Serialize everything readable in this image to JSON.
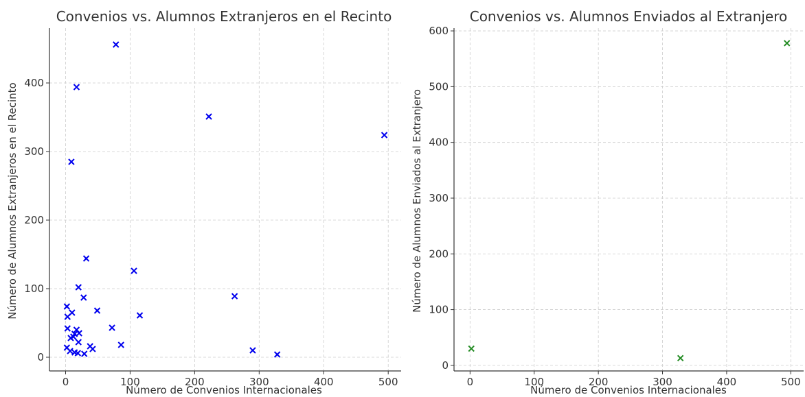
{
  "chart_data": [
    {
      "type": "scatter",
      "title": "Convenios vs. Alumnos Extranjeros en el Recinto",
      "xlabel": "Número de Convenios Internacionales",
      "ylabel": "Número de Alumnos Extranjeros en el Recinto",
      "xlim": [
        -25,
        520
      ],
      "ylim": [
        -20,
        480
      ],
      "xticks": [
        0,
        100,
        200,
        300,
        400,
        500
      ],
      "yticks": [
        0,
        100,
        200,
        300,
        400
      ],
      "grid": true,
      "marker": "x",
      "color": "#0000ee",
      "points": [
        {
          "x": 78,
          "y": 456
        },
        {
          "x": 17,
          "y": 394
        },
        {
          "x": 222,
          "y": 351
        },
        {
          "x": 494,
          "y": 324
        },
        {
          "x": 9,
          "y": 285
        },
        {
          "x": 32,
          "y": 144
        },
        {
          "x": 106,
          "y": 126
        },
        {
          "x": 20,
          "y": 102
        },
        {
          "x": 262,
          "y": 89
        },
        {
          "x": 28,
          "y": 87
        },
        {
          "x": 2,
          "y": 74
        },
        {
          "x": 49,
          "y": 68
        },
        {
          "x": 10,
          "y": 65
        },
        {
          "x": 115,
          "y": 61
        },
        {
          "x": 3,
          "y": 59
        },
        {
          "x": 72,
          "y": 43
        },
        {
          "x": 3,
          "y": 42
        },
        {
          "x": 17,
          "y": 40
        },
        {
          "x": 21,
          "y": 35
        },
        {
          "x": 14,
          "y": 34
        },
        {
          "x": 12,
          "y": 30
        },
        {
          "x": 8,
          "y": 28
        },
        {
          "x": 20,
          "y": 22
        },
        {
          "x": 86,
          "y": 18
        },
        {
          "x": 38,
          "y": 16
        },
        {
          "x": 2,
          "y": 14
        },
        {
          "x": 42,
          "y": 12
        },
        {
          "x": 290,
          "y": 10
        },
        {
          "x": 7,
          "y": 9
        },
        {
          "x": 14,
          "y": 7
        },
        {
          "x": 19,
          "y": 6
        },
        {
          "x": 29,
          "y": 5
        },
        {
          "x": 328,
          "y": 4
        }
      ]
    },
    {
      "type": "scatter",
      "title": "Convenios vs. Alumnos Enviados al Extranjero",
      "xlabel": "Número de Convenios Internacionales",
      "ylabel": "Número de Alumnos Enviados al Extranjero",
      "xlim": [
        -25,
        520
      ],
      "ylim": [
        -10,
        605
      ],
      "xticks": [
        0,
        100,
        200,
        300,
        400,
        500
      ],
      "yticks": [
        0,
        100,
        200,
        300,
        400,
        500,
        600
      ],
      "grid": true,
      "marker": "x",
      "color": "#228b22",
      "points": [
        {
          "x": 2,
          "y": 30
        },
        {
          "x": 328,
          "y": 13
        },
        {
          "x": 494,
          "y": 578
        }
      ]
    }
  ]
}
